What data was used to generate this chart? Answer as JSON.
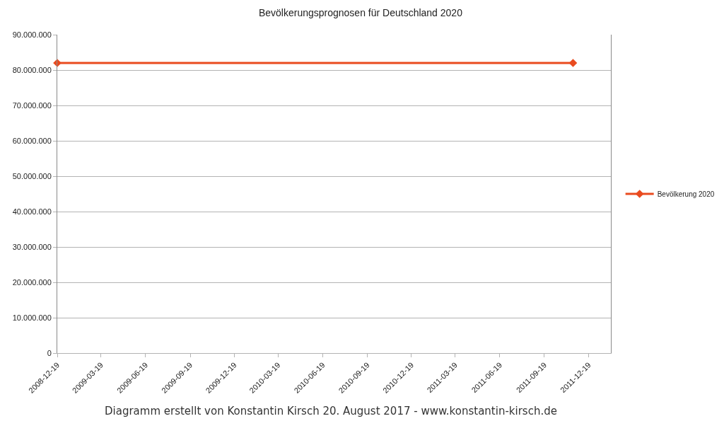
{
  "chart_data": {
    "type": "line",
    "title": "Bevölkerungsprognosen für Deutschland 2020",
    "annotations": [
      "Diagramm erstellt von Konstantin Kirsch 20. August 2017 - www.konstantin-kirsch.de"
    ],
    "x": [
      "2008-12-19",
      "2011-11-17"
    ],
    "series": [
      {
        "name": "Bevölkerung 2020",
        "color": "#e94b1f",
        "values": [
          82000000,
          82000000
        ]
      }
    ],
    "xlim": [
      "2008-12-19",
      "2012-02-03"
    ],
    "xticks": [
      "2008-12-19",
      "2009-03-19",
      "2009-06-19",
      "2009-09-19",
      "2009-12-19",
      "2010-03-19",
      "2010-06-19",
      "2010-09-19",
      "2010-12-19",
      "2011-03-19",
      "2011-06-19",
      "2011-09-19",
      "2011-12-19"
    ],
    "ylim": [
      0,
      90000000
    ],
    "yticks": [
      {
        "value": 0,
        "label": "0"
      },
      {
        "value": 10000000,
        "label": "10.000.000"
      },
      {
        "value": 20000000,
        "label": "20.000.000"
      },
      {
        "value": 30000000,
        "label": "30.000.000"
      },
      {
        "value": 40000000,
        "label": "40.000.000"
      },
      {
        "value": 50000000,
        "label": "50.000.000"
      },
      {
        "value": 60000000,
        "label": "60.000.000"
      },
      {
        "value": 70000000,
        "label": "70.000.000"
      },
      {
        "value": 80000000,
        "label": "80.000.000"
      },
      {
        "value": 90000000,
        "label": "90.000.000"
      }
    ],
    "grid": "y",
    "legend": "right",
    "marker": "diamond",
    "line_style": "solid"
  }
}
